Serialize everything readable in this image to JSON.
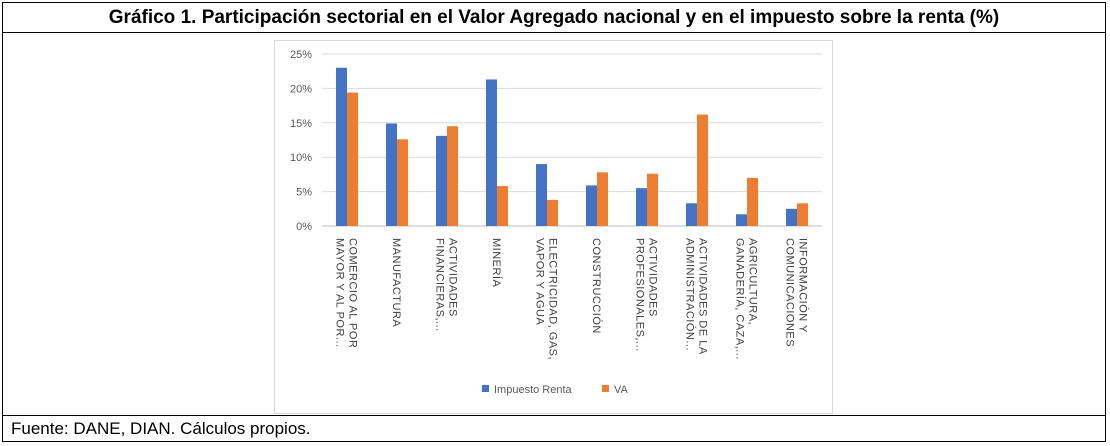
{
  "title": "Gráfico 1. Participación sectorial en el Valor Agregado nacional y en el impuesto sobre la renta (%)",
  "source": "Fuente: DANE, DIAN. Cálculos propios.",
  "chart_data": {
    "type": "bar",
    "categories": [
      [
        "COMERCIO AL POR",
        "MAYOR Y AL POR..."
      ],
      [
        "MANUFACTURA"
      ],
      [
        "ACTIVIDADES",
        "FINANCIERAS,..."
      ],
      [
        "MINERÍA"
      ],
      [
        "ELECTRICIDAD, GAS,",
        "VAPOR Y AGUA"
      ],
      [
        "CONSTRUCCIÓN"
      ],
      [
        "ACTIVIDADES",
        "PROFESIONALES,..."
      ],
      [
        "ACTIVIDADES DE LA",
        "ADMINISTRACIÓN..."
      ],
      [
        "AGRICULTURA,",
        "GANADERÍA, CAZA,..."
      ],
      [
        "INFORMACIÓN Y",
        "COMUNICACIONES"
      ]
    ],
    "series": [
      {
        "name": "Impuesto Renta",
        "color": "#4472c4",
        "values": [
          23.0,
          14.9,
          13.1,
          21.3,
          9.0,
          5.9,
          5.5,
          3.3,
          1.7,
          2.5
        ]
      },
      {
        "name": "VA",
        "color": "#ed7d31",
        "values": [
          19.4,
          12.6,
          14.5,
          5.8,
          3.8,
          7.8,
          7.6,
          16.2,
          7.0,
          3.3
        ]
      }
    ],
    "y_ticks": [
      "0%",
      "5%",
      "10%",
      "15%",
      "20%",
      "25%"
    ],
    "ylim": [
      0,
      25
    ],
    "grid": true,
    "legend_position": "bottom"
  }
}
